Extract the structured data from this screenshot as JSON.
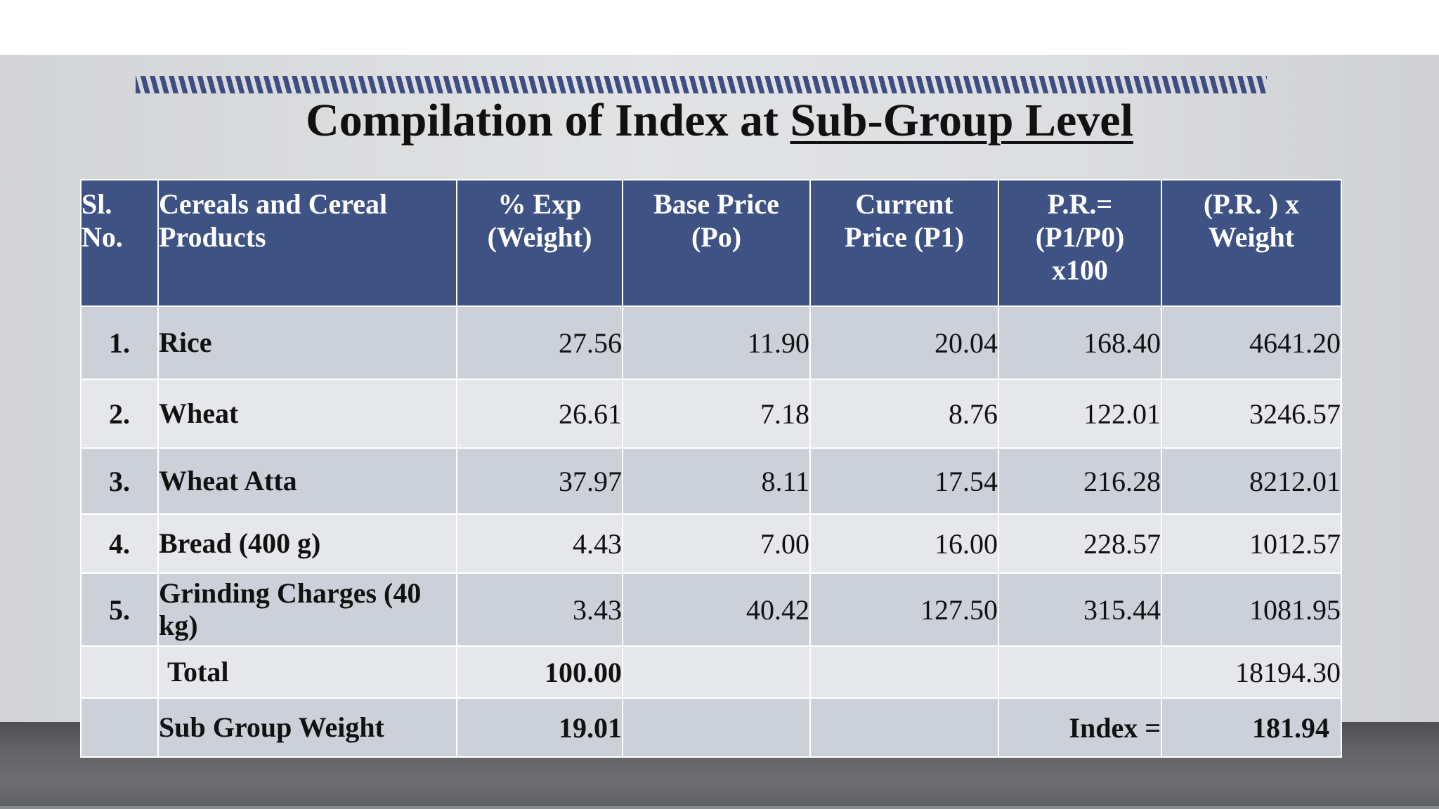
{
  "title": {
    "prefix": "Compilation of Index at ",
    "underlined": "Sub-Group Level"
  },
  "table": {
    "headers": {
      "sl": [
        "Sl.",
        "No."
      ],
      "item": [
        "Cereals and Cereal",
        "Products"
      ],
      "weight": [
        "% Exp",
        "(Weight)"
      ],
      "base_price": [
        "Base Price",
        "(Po)"
      ],
      "current_price": [
        "Current",
        "Price (P1)"
      ],
      "pr": [
        "P.R.=",
        "(P1/P0)",
        "x100"
      ],
      "pr_weight": [
        "(P.R. ) x",
        "Weight"
      ]
    },
    "rows": [
      {
        "sl": "1.",
        "item": "Rice",
        "weight": "27.56",
        "base": "11.90",
        "current": "20.04",
        "pr": "168.40",
        "prw": "4641.20"
      },
      {
        "sl": "2.",
        "item": "Wheat",
        "weight": "26.61",
        "base": "7.18",
        "current": "8.76",
        "pr": "122.01",
        "prw": "3246.57"
      },
      {
        "sl": "3.",
        "item": "Wheat Atta",
        "weight": "37.97",
        "base": "8.11",
        "current": "17.54",
        "pr": "216.28",
        "prw": "8212.01"
      },
      {
        "sl": "4.",
        "item": "Bread (400 g)",
        "weight": "4.43",
        "base": "7.00",
        "current": "16.00",
        "pr": "228.57",
        "prw": "1012.57"
      },
      {
        "sl": "5.",
        "item": "Grinding Charges (40 kg)",
        "weight": "3.43",
        "base": "40.42",
        "current": "127.50",
        "pr": "315.44",
        "prw": "1081.95"
      }
    ],
    "total": {
      "label": "Total",
      "weight": "100.00",
      "prw": "18194.30"
    },
    "subgroup": {
      "label": "Sub Group Weight",
      "weight": "19.01",
      "index_label": "Index =",
      "index_value": "181.94"
    }
  }
}
